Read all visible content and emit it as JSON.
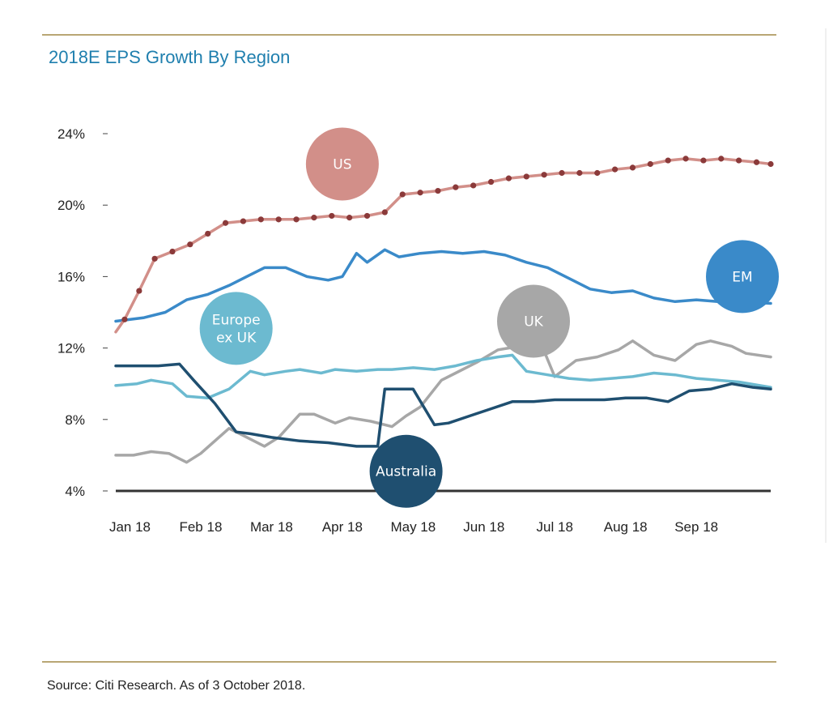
{
  "title": "2018E EPS Growth By Region",
  "source": "Source: Citi Research. As of 3 October 2018.",
  "colors": {
    "rule": "#b9a674",
    "title": "#1f7fae",
    "baseline": "#333333"
  },
  "chart_data": {
    "type": "line",
    "title": "2018E EPS Growth By Region",
    "xlabel": "",
    "ylabel": "",
    "categories": [
      "Jan 18",
      "Feb 18",
      "Mar 18",
      "Apr 18",
      "May 18",
      "Jun 18",
      "Jul 18",
      "Aug 18",
      "Sep 18"
    ],
    "yticks": [
      "24%",
      "20%",
      "16%",
      "12%",
      "8%",
      "4%"
    ],
    "ylim": [
      4,
      24
    ],
    "xlim": [
      0,
      9.25
    ],
    "grid": false,
    "legend": "bubble labels on chart",
    "series": [
      {
        "name": "US",
        "color": "#d28f89",
        "markerColor": "#8b3a3a",
        "markers": true,
        "label_at": [
          3.2,
          22.3
        ],
        "x": [
          0,
          0.125,
          0.33,
          0.55,
          0.8,
          1.05,
          1.3,
          1.55,
          1.8,
          2.05,
          2.3,
          2.55,
          2.8,
          3.05,
          3.3,
          3.55,
          3.8,
          4.05,
          4.3,
          4.55,
          4.8,
          5.05,
          5.3,
          5.55,
          5.8,
          6.05,
          6.3,
          6.55,
          6.8,
          7.05,
          7.3,
          7.55,
          7.8,
          8.05,
          8.3,
          8.55,
          8.8,
          9.05,
          9.25
        ],
        "y": [
          12.9,
          13.6,
          15.2,
          17.0,
          17.4,
          17.8,
          18.4,
          19.0,
          19.1,
          19.2,
          19.2,
          19.2,
          19.3,
          19.4,
          19.3,
          19.4,
          19.6,
          20.6,
          20.7,
          20.8,
          21.0,
          21.1,
          21.3,
          21.5,
          21.6,
          21.7,
          21.8,
          21.8,
          21.8,
          22.0,
          22.1,
          22.3,
          22.5,
          22.6,
          22.5,
          22.6,
          22.5,
          22.4,
          22.3
        ]
      },
      {
        "name": "EM",
        "color": "#3a8ac9",
        "markers": false,
        "label_at": [
          8.85,
          16.0
        ],
        "x": [
          0,
          0.4,
          0.7,
          1.0,
          1.3,
          1.6,
          1.9,
          2.1,
          2.4,
          2.7,
          3.0,
          3.2,
          3.4,
          3.55,
          3.8,
          4.0,
          4.3,
          4.6,
          4.9,
          5.2,
          5.5,
          5.8,
          6.1,
          6.4,
          6.7,
          7.0,
          7.3,
          7.6,
          7.9,
          8.2,
          8.5,
          8.8,
          9.25
        ],
        "y": [
          13.5,
          13.7,
          14.0,
          14.7,
          15.0,
          15.5,
          16.1,
          16.5,
          16.5,
          16.0,
          15.8,
          16.0,
          17.3,
          16.8,
          17.5,
          17.1,
          17.3,
          17.4,
          17.3,
          17.4,
          17.2,
          16.8,
          16.5,
          15.9,
          15.3,
          15.1,
          15.2,
          14.8,
          14.6,
          14.7,
          14.6,
          14.6,
          14.5
        ]
      },
      {
        "name": "Europe ex UK",
        "color": "#6cbad0",
        "markers": false,
        "label_at": [
          1.7,
          13.1
        ],
        "x": [
          0,
          0.3,
          0.5,
          0.8,
          1.0,
          1.3,
          1.6,
          1.9,
          2.1,
          2.4,
          2.6,
          2.9,
          3.1,
          3.4,
          3.7,
          3.9,
          4.2,
          4.5,
          4.8,
          5.1,
          5.4,
          5.6,
          5.8,
          6.1,
          6.4,
          6.7,
          7.0,
          7.3,
          7.6,
          7.9,
          8.2,
          8.5,
          8.8,
          9.25
        ],
        "y": [
          9.9,
          10.0,
          10.2,
          10.0,
          9.3,
          9.2,
          9.7,
          10.7,
          10.5,
          10.7,
          10.8,
          10.6,
          10.8,
          10.7,
          10.8,
          10.8,
          10.9,
          10.8,
          11.0,
          11.3,
          11.5,
          11.6,
          10.7,
          10.5,
          10.3,
          10.2,
          10.3,
          10.4,
          10.6,
          10.5,
          10.3,
          10.2,
          10.1,
          9.8
        ]
      },
      {
        "name": "UK",
        "color": "#a7a7a7",
        "markers": false,
        "label_at": [
          5.9,
          13.5
        ],
        "x": [
          0,
          0.25,
          0.5,
          0.75,
          1.0,
          1.2,
          1.6,
          1.8,
          2.1,
          2.3,
          2.6,
          2.8,
          3.1,
          3.3,
          3.6,
          3.9,
          4.1,
          4.3,
          4.6,
          4.8,
          5.1,
          5.4,
          5.55,
          5.7,
          6.0,
          6.2,
          6.5,
          6.8,
          7.1,
          7.3,
          7.6,
          7.9,
          8.2,
          8.4,
          8.7,
          8.9,
          9.25
        ],
        "y": [
          6.0,
          6.0,
          6.2,
          6.1,
          5.6,
          6.1,
          7.5,
          7.1,
          6.5,
          7.0,
          8.3,
          8.3,
          7.8,
          8.1,
          7.9,
          7.6,
          8.2,
          8.7,
          10.2,
          10.6,
          11.2,
          11.9,
          12.0,
          12.1,
          12.3,
          10.4,
          11.3,
          11.5,
          11.9,
          12.4,
          11.6,
          11.3,
          12.2,
          12.4,
          12.1,
          11.7,
          11.5
        ]
      },
      {
        "name": "Australia",
        "color": "#1f4f70",
        "markers": false,
        "label_at": [
          4.1,
          5.1
        ],
        "x": [
          0,
          0.6,
          0.9,
          1.1,
          1.4,
          1.7,
          1.9,
          2.2,
          2.6,
          3.0,
          3.4,
          3.7,
          3.8,
          4.2,
          4.5,
          4.7,
          5.0,
          5.3,
          5.6,
          5.9,
          6.2,
          6.6,
          6.9,
          7.2,
          7.5,
          7.8,
          8.1,
          8.4,
          8.7,
          9.0,
          9.25
        ],
        "y": [
          11.0,
          11.0,
          11.1,
          10.2,
          8.9,
          7.3,
          7.2,
          7.0,
          6.8,
          6.7,
          6.5,
          6.5,
          9.7,
          9.7,
          7.7,
          7.8,
          8.2,
          8.6,
          9.0,
          9.0,
          9.1,
          9.1,
          9.1,
          9.2,
          9.2,
          9.0,
          9.6,
          9.7,
          10.0,
          9.8,
          9.7
        ]
      }
    ]
  }
}
